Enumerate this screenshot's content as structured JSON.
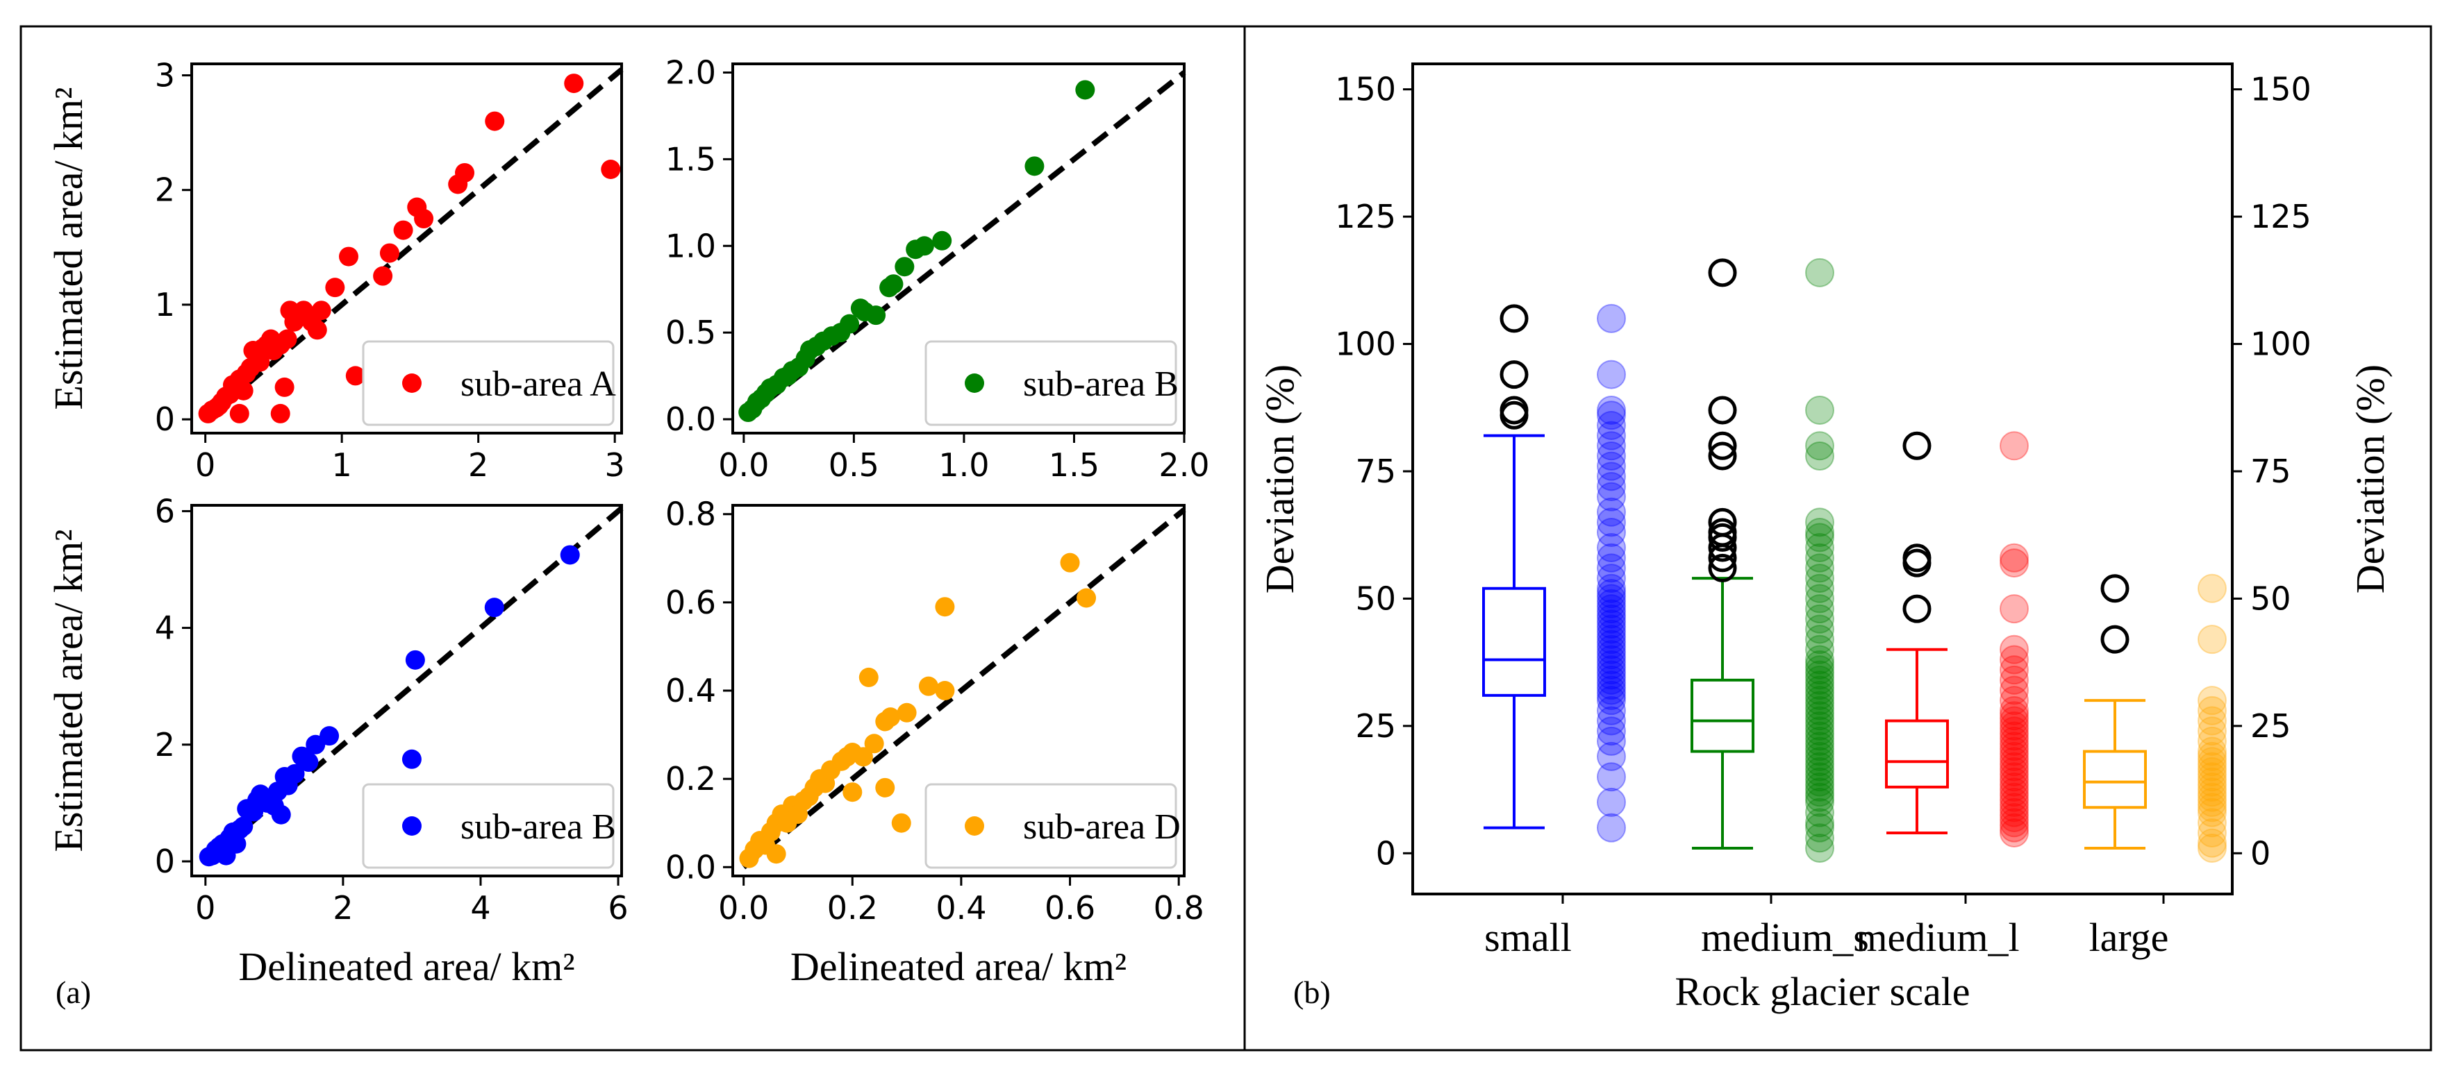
{
  "figure": {
    "panel_a_tag": "(a)",
    "panel_b_tag": "(b)"
  },
  "colors": {
    "red": "#ff0000",
    "green": "#008000",
    "blue": "#0000ff",
    "orange": "#ffa500",
    "refline": "#000000"
  },
  "chart_data": [
    {
      "type": "scatter",
      "ylabel": "Estimated area/ km²",
      "xlabel": "",
      "xlim": [
        -0.1,
        3.05
      ],
      "ylim": [
        -0.12,
        3.1
      ],
      "xticks": [
        0,
        1,
        2,
        3
      ],
      "yticks": [
        0,
        1,
        2,
        3
      ],
      "xtick_labels": [
        "0",
        "1",
        "2",
        "3"
      ],
      "ytick_labels": [
        "0",
        "1",
        "2",
        "3"
      ],
      "reference_line": "y=x",
      "legend": "sub-area A",
      "legend_position": "lower-right",
      "color": "#ff0000",
      "points": [
        [
          0.02,
          0.05
        ],
        [
          0.05,
          0.08
        ],
        [
          0.08,
          0.1
        ],
        [
          0.1,
          0.12
        ],
        [
          0.12,
          0.15
        ],
        [
          0.15,
          0.2
        ],
        [
          0.18,
          0.22
        ],
        [
          0.2,
          0.3
        ],
        [
          0.25,
          0.35
        ],
        [
          0.28,
          0.25
        ],
        [
          0.3,
          0.4
        ],
        [
          0.33,
          0.45
        ],
        [
          0.35,
          0.6
        ],
        [
          0.38,
          0.55
        ],
        [
          0.4,
          0.5
        ],
        [
          0.42,
          0.62
        ],
        [
          0.45,
          0.65
        ],
        [
          0.48,
          0.7
        ],
        [
          0.5,
          0.6
        ],
        [
          0.55,
          0.65
        ],
        [
          0.6,
          0.7
        ],
        [
          0.62,
          0.95
        ],
        [
          0.65,
          0.85
        ],
        [
          0.7,
          0.9
        ],
        [
          0.72,
          0.95
        ],
        [
          0.78,
          0.85
        ],
        [
          0.82,
          0.78
        ],
        [
          0.85,
          0.95
        ],
        [
          0.95,
          1.15
        ],
        [
          1.05,
          1.42
        ],
        [
          1.3,
          1.25
        ],
        [
          1.35,
          1.45
        ],
        [
          1.45,
          1.65
        ],
        [
          1.55,
          1.85
        ],
        [
          1.6,
          1.75
        ],
        [
          1.85,
          2.05
        ],
        [
          1.9,
          2.15
        ],
        [
          2.12,
          2.6
        ],
        [
          2.7,
          2.93
        ],
        [
          2.97,
          2.18
        ],
        [
          0.25,
          0.05
        ],
        [
          0.55,
          0.05
        ],
        [
          0.58,
          0.28
        ],
        [
          1.1,
          0.38
        ]
      ]
    },
    {
      "type": "scatter",
      "ylabel": "",
      "xlabel": "",
      "xlim": [
        -0.05,
        2.0
      ],
      "ylim": [
        -0.08,
        2.05
      ],
      "xticks": [
        0.0,
        0.5,
        1.0,
        1.5,
        2.0
      ],
      "yticks": [
        0.0,
        0.5,
        1.0,
        1.5,
        2.0
      ],
      "xtick_labels": [
        "0.0",
        "0.5",
        "1.0",
        "1.5",
        "2.0"
      ],
      "ytick_labels": [
        "0.0",
        "0.5",
        "1.0",
        "1.5",
        "2.0"
      ],
      "reference_line": "y=x",
      "legend": "sub-area B",
      "legend_position": "lower-right",
      "color": "#008000",
      "points": [
        [
          0.02,
          0.04
        ],
        [
          0.04,
          0.06
        ],
        [
          0.06,
          0.1
        ],
        [
          0.08,
          0.12
        ],
        [
          0.1,
          0.15
        ],
        [
          0.12,
          0.18
        ],
        [
          0.15,
          0.2
        ],
        [
          0.18,
          0.24
        ],
        [
          0.2,
          0.25
        ],
        [
          0.22,
          0.28
        ],
        [
          0.25,
          0.3
        ],
        [
          0.28,
          0.35
        ],
        [
          0.3,
          0.4
        ],
        [
          0.33,
          0.42
        ],
        [
          0.36,
          0.45
        ],
        [
          0.4,
          0.48
        ],
        [
          0.44,
          0.5
        ],
        [
          0.48,
          0.55
        ],
        [
          0.53,
          0.64
        ],
        [
          0.55,
          0.62
        ],
        [
          0.6,
          0.6
        ],
        [
          0.66,
          0.76
        ],
        [
          0.68,
          0.78
        ],
        [
          0.73,
          0.88
        ],
        [
          0.78,
          0.98
        ],
        [
          0.82,
          1.0
        ],
        [
          0.9,
          1.03
        ],
        [
          1.32,
          1.46
        ],
        [
          1.55,
          1.9
        ]
      ]
    },
    {
      "type": "scatter",
      "ylabel": "Estimated area/ km²",
      "xlabel": "Delineated area/ km²",
      "xlim": [
        -0.2,
        6.05
      ],
      "ylim": [
        -0.25,
        6.1
      ],
      "xticks": [
        0,
        2,
        4,
        6
      ],
      "yticks": [
        0,
        2,
        4,
        6
      ],
      "xtick_labels": [
        "0",
        "2",
        "4",
        "6"
      ],
      "ytick_labels": [
        "0",
        "2",
        "4",
        "6"
      ],
      "reference_line": "y=x",
      "legend": "sub-area B",
      "legend_position": "lower-right",
      "color": "#0000ff",
      "points": [
        [
          0.05,
          0.08
        ],
        [
          0.1,
          0.1
        ],
        [
          0.15,
          0.2
        ],
        [
          0.2,
          0.25
        ],
        [
          0.25,
          0.3
        ],
        [
          0.3,
          0.1
        ],
        [
          0.35,
          0.4
        ],
        [
          0.4,
          0.5
        ],
        [
          0.45,
          0.3
        ],
        [
          0.5,
          0.55
        ],
        [
          0.55,
          0.6
        ],
        [
          0.6,
          0.9
        ],
        [
          0.7,
          0.85
        ],
        [
          0.75,
          1.05
        ],
        [
          0.8,
          1.15
        ],
        [
          0.9,
          1.0
        ],
        [
          1.0,
          0.95
        ],
        [
          1.05,
          1.2
        ],
        [
          1.1,
          0.8
        ],
        [
          1.15,
          1.45
        ],
        [
          1.2,
          1.3
        ],
        [
          1.3,
          1.5
        ],
        [
          1.4,
          1.8
        ],
        [
          1.5,
          1.7
        ],
        [
          1.6,
          2.0
        ],
        [
          1.8,
          2.15
        ],
        [
          3.0,
          1.75
        ],
        [
          3.05,
          3.45
        ],
        [
          4.2,
          4.35
        ],
        [
          5.3,
          5.25
        ]
      ]
    },
    {
      "type": "scatter",
      "ylabel": "",
      "xlabel": "Delineated area/ km²",
      "xlim": [
        -0.02,
        0.81
      ],
      "ylim": [
        -0.02,
        0.82
      ],
      "xticks": [
        0.0,
        0.2,
        0.4,
        0.6,
        0.8
      ],
      "yticks": [
        0.0,
        0.2,
        0.4,
        0.6,
        0.8
      ],
      "xtick_labels": [
        "0.0",
        "0.2",
        "0.4",
        "0.6",
        "0.8"
      ],
      "ytick_labels": [
        "0.0",
        "0.2",
        "0.4",
        "0.6",
        "0.8"
      ],
      "reference_line": "y=x",
      "legend": "sub-area D",
      "legend_position": "lower-right",
      "color": "#ffa500",
      "points": [
        [
          0.01,
          0.02
        ],
        [
          0.02,
          0.04
        ],
        [
          0.03,
          0.06
        ],
        [
          0.04,
          0.05
        ],
        [
          0.05,
          0.08
        ],
        [
          0.06,
          0.1
        ],
        [
          0.06,
          0.03
        ],
        [
          0.07,
          0.12
        ],
        [
          0.08,
          0.1
        ],
        [
          0.09,
          0.14
        ],
        [
          0.1,
          0.12
        ],
        [
          0.11,
          0.15
        ],
        [
          0.12,
          0.16
        ],
        [
          0.13,
          0.18
        ],
        [
          0.14,
          0.2
        ],
        [
          0.15,
          0.19
        ],
        [
          0.16,
          0.22
        ],
        [
          0.18,
          0.24
        ],
        [
          0.19,
          0.25
        ],
        [
          0.2,
          0.26
        ],
        [
          0.22,
          0.25
        ],
        [
          0.23,
          0.43
        ],
        [
          0.24,
          0.28
        ],
        [
          0.26,
          0.33
        ],
        [
          0.27,
          0.34
        ],
        [
          0.3,
          0.35
        ],
        [
          0.34,
          0.41
        ],
        [
          0.37,
          0.4
        ],
        [
          0.37,
          0.59
        ],
        [
          0.6,
          0.69
        ],
        [
          0.63,
          0.61
        ],
        [
          0.29,
          0.1
        ],
        [
          0.2,
          0.17
        ],
        [
          0.26,
          0.18
        ]
      ]
    },
    {
      "type": "box",
      "xlabel": "Rock glacier scale",
      "ylabel": "Deviation (%)",
      "ylabel_right": "Deviation (%)",
      "ylim": [
        -8,
        155
      ],
      "yticks": [
        0,
        25,
        50,
        75,
        100,
        125,
        150
      ],
      "ytick_labels": [
        "0",
        "25",
        "50",
        "75",
        "100",
        "125",
        "150"
      ],
      "categories": [
        "small",
        "medium_s",
        "medium_l",
        "large"
      ],
      "series": [
        {
          "category": "small",
          "color": "#0000ff",
          "q1": 31,
          "median": 38,
          "q3": 52,
          "whisker_low": 5,
          "whisker_high": 82,
          "outliers": [
            86,
            87,
            94,
            105
          ],
          "points": [
            5,
            10,
            15,
            19,
            22,
            24,
            26,
            28,
            30,
            31,
            32,
            33,
            34,
            35,
            36,
            37,
            38,
            39,
            40,
            41,
            42,
            43,
            44,
            45,
            46,
            47,
            48,
            49,
            50,
            51,
            52,
            54,
            56,
            58,
            60,
            63,
            65,
            67,
            70,
            72,
            74,
            76,
            78,
            80,
            82,
            84,
            86,
            87,
            94,
            105
          ]
        },
        {
          "category": "medium_s",
          "color": "#008000",
          "q1": 20,
          "median": 26,
          "q3": 34,
          "whisker_low": 1,
          "whisker_high": 54,
          "outliers": [
            56,
            58,
            60,
            62,
            63,
            65,
            78,
            80,
            87,
            114
          ],
          "points": [
            1,
            3,
            5,
            6,
            8,
            10,
            11,
            12,
            13,
            14,
            15,
            16,
            17,
            18,
            19,
            20,
            21,
            22,
            23,
            24,
            25,
            26,
            27,
            28,
            29,
            30,
            31,
            32,
            33,
            34,
            35,
            36,
            37,
            38,
            40,
            42,
            44,
            46,
            48,
            50,
            52,
            54,
            56,
            58,
            60,
            62,
            63,
            65,
            78,
            80,
            87,
            114
          ]
        },
        {
          "category": "medium_l",
          "color": "#ff0000",
          "q1": 13,
          "median": 18,
          "q3": 26,
          "whisker_low": 4,
          "whisker_high": 40,
          "outliers": [
            48,
            57,
            58,
            80
          ],
          "points": [
            4,
            5,
            6,
            7,
            8,
            9,
            10,
            11,
            12,
            13,
            14,
            15,
            16,
            17,
            18,
            19,
            20,
            21,
            22,
            23,
            24,
            25,
            26,
            27,
            28,
            30,
            32,
            34,
            36,
            38,
            40,
            48,
            57,
            58,
            80
          ]
        },
        {
          "category": "large",
          "color": "#ffa500",
          "q1": 9,
          "median": 14,
          "q3": 20,
          "whisker_low": 1,
          "whisker_high": 30,
          "outliers": [
            42,
            52
          ],
          "points": [
            1,
            2,
            4,
            6,
            8,
            9,
            10,
            11,
            12,
            13,
            14,
            15,
            16,
            17,
            18,
            19,
            20,
            22,
            24,
            26,
            28,
            30,
            42,
            52
          ]
        }
      ]
    }
  ]
}
